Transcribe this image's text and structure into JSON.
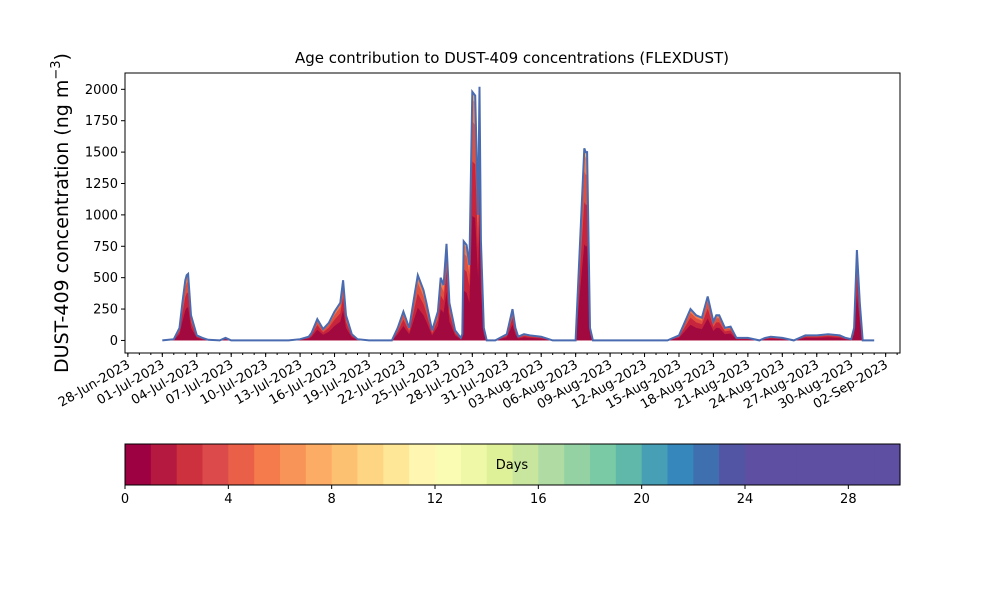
{
  "chart_data": {
    "type": "area",
    "title": "Age contribution to DUST-409 concentrations (FLEXDUST)",
    "ylabel": "DUST-409 concentration (ng m",
    "ylabel_sup": "−3",
    "ylabel_close": ")",
    "xlabel": "",
    "ylim": [
      -100,
      2130
    ],
    "yticks": [
      0,
      250,
      500,
      750,
      1000,
      1250,
      1500,
      1750,
      2000
    ],
    "ytick_labels": [
      "0",
      "250",
      "500",
      "750",
      "1000",
      "1250",
      "1500",
      "1750",
      "2000"
    ],
    "xlim": [
      "2023-06-27T18:00",
      "2023-09-03T06:00"
    ],
    "xticks": [
      "2023-06-28",
      "2023-07-01",
      "2023-07-04",
      "2023-07-07",
      "2023-07-10",
      "2023-07-13",
      "2023-07-16",
      "2023-07-19",
      "2023-07-22",
      "2023-07-25",
      "2023-07-28",
      "2023-07-31",
      "2023-08-03",
      "2023-08-06",
      "2023-08-09",
      "2023-08-12",
      "2023-08-15",
      "2023-08-18",
      "2023-08-21",
      "2023-08-24",
      "2023-08-27",
      "2023-08-30",
      "2023-09-02"
    ],
    "xtick_labels": [
      "28-Jun-2023",
      "01-Jul-2023",
      "04-Jul-2023",
      "07-Jul-2023",
      "10-Jul-2023",
      "13-Jul-2023",
      "16-Jul-2023",
      "19-Jul-2023",
      "22-Jul-2023",
      "25-Jul-2023",
      "28-Jul-2023",
      "31-Jul-2023",
      "03-Aug-2023",
      "06-Aug-2023",
      "09-Aug-2023",
      "12-Aug-2023",
      "15-Aug-2023",
      "18-Aug-2023",
      "21-Aug-2023",
      "24-Aug-2023",
      "27-Aug-2023",
      "30-Aug-2023",
      "02-Sep-2023"
    ],
    "total_line_color": "#4a6bb0",
    "series_total": {
      "x": [
        "2023-07-01",
        "2023-07-02",
        "2023-07-02T12:00",
        "2023-07-02T18:00",
        "2023-07-03",
        "2023-07-03T03:00",
        "2023-07-03T06:00",
        "2023-07-03T12:00",
        "2023-07-04",
        "2023-07-04T12:00",
        "2023-07-05",
        "2023-07-06",
        "2023-07-06T12:00",
        "2023-07-07",
        "2023-07-08",
        "2023-07-12",
        "2023-07-13",
        "2023-07-13T18:00",
        "2023-07-14",
        "2023-07-14T12:00",
        "2023-07-15",
        "2023-07-15T12:00",
        "2023-07-16",
        "2023-07-16T12:00",
        "2023-07-16T18:00",
        "2023-07-17",
        "2023-07-17T12:00",
        "2023-07-18",
        "2023-07-19",
        "2023-07-20",
        "2023-07-21",
        "2023-07-21T12:00",
        "2023-07-22",
        "2023-07-22T12:00",
        "2023-07-23",
        "2023-07-23T06:00",
        "2023-07-23T18:00",
        "2023-07-24",
        "2023-07-24T12:00",
        "2023-07-25",
        "2023-07-25T06:00",
        "2023-07-25T12:00",
        "2023-07-25T18:00",
        "2023-07-26",
        "2023-07-26T12:00",
        "2023-07-27",
        "2023-07-27T03:00",
        "2023-07-27T06:00",
        "2023-07-27T12:00",
        "2023-07-27T18:00",
        "2023-07-28",
        "2023-07-28T06:00",
        "2023-07-28T12:00",
        "2023-07-28T15:00",
        "2023-07-28T18:00",
        "2023-07-29",
        "2023-07-29T06:00",
        "2023-07-29T12:00",
        "2023-07-30",
        "2023-07-31",
        "2023-07-31T12:00",
        "2023-07-31T18:00",
        "2023-08-01",
        "2023-08-01T12:00",
        "2023-08-02",
        "2023-08-03",
        "2023-08-04",
        "2023-08-05",
        "2023-08-06",
        "2023-08-06T18:00",
        "2023-08-06T21:00",
        "2023-08-07",
        "2023-08-07T06:00",
        "2023-08-07T12:00",
        "2023-08-08",
        "2023-08-14",
        "2023-08-15",
        "2023-08-16",
        "2023-08-16T12:00",
        "2023-08-17",
        "2023-08-17T12:00",
        "2023-08-18",
        "2023-08-18T06:00",
        "2023-08-18T12:00",
        "2023-08-19",
        "2023-08-19T12:00",
        "2023-08-20",
        "2023-08-21",
        "2023-08-22",
        "2023-08-22T12:00",
        "2023-08-23",
        "2023-08-24",
        "2023-08-25",
        "2023-08-26",
        "2023-08-27",
        "2023-08-28",
        "2023-08-29",
        "2023-08-29T12:00",
        "2023-08-30",
        "2023-08-30T06:00",
        "2023-08-30T12:00",
        "2023-08-30T18:00",
        "2023-08-31",
        "2023-09-01"
      ],
      "y": [
        0,
        10,
        100,
        300,
        480,
        520,
        530,
        200,
        40,
        20,
        5,
        0,
        20,
        0,
        0,
        0,
        10,
        30,
        60,
        170,
        90,
        140,
        230,
        300,
        480,
        200,
        50,
        10,
        0,
        0,
        0,
        100,
        230,
        100,
        380,
        520,
        400,
        300,
        80,
        230,
        500,
        440,
        770,
        300,
        80,
        20,
        50,
        790,
        760,
        600,
        1980,
        1950,
        1000,
        2020,
        800,
        100,
        0,
        0,
        0,
        50,
        250,
        100,
        30,
        50,
        40,
        30,
        0,
        0,
        0,
        1530,
        1500,
        1500,
        100,
        0,
        0,
        0,
        40,
        250,
        200,
        180,
        350,
        150,
        200,
        200,
        100,
        110,
        20,
        20,
        0,
        20,
        30,
        20,
        0,
        40,
        40,
        50,
        40,
        20,
        10,
        100,
        720,
        300,
        0,
        0
      ]
    },
    "colorbar": {
      "label": "Days",
      "range": [
        0,
        30
      ],
      "ticks": [
        0,
        4,
        8,
        12,
        16,
        20,
        24,
        28
      ],
      "tick_labels": [
        "0",
        "4",
        "8",
        "12",
        "16",
        "20",
        "24",
        "28"
      ],
      "colors": [
        "#9e0142",
        "#b5193f",
        "#cd313e",
        "#dd4a4c",
        "#ea5f48",
        "#f57b4c",
        "#f99459",
        "#fcac64",
        "#fdc271",
        "#fed683",
        "#fee797",
        "#fff7b1",
        "#fbfcb4",
        "#eff8a6",
        "#dff198",
        "#c8e69e",
        "#b0dca3",
        "#94d2a4",
        "#7acba5",
        "#5fb8a9",
        "#469fb4",
        "#3688bc",
        "#3f6faf",
        "#5254a4",
        "#5e4fa2",
        "#5e4fa2",
        "#5e4fa2",
        "#5e4fa2",
        "#5e4fa2",
        "#5e4fa2"
      ]
    }
  }
}
